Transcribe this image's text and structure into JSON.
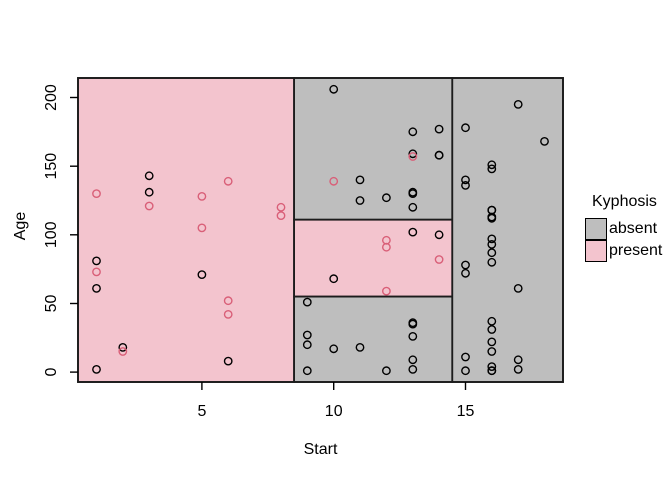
{
  "figure": {
    "background": "#ffffff"
  },
  "chart_data": {
    "type": "scatter",
    "title": "",
    "xlabel": "Start",
    "ylabel": "Age",
    "xlim": [
      0.3,
      18.7
    ],
    "ylim": [
      -7.2,
      214.2
    ],
    "x_ticks": [
      5,
      10,
      15
    ],
    "y_ticks": [
      0,
      50,
      100,
      150,
      200
    ],
    "grid": false,
    "marker": "open-circle",
    "legend": {
      "title": "Kyphosis",
      "position": "right",
      "items": [
        {
          "label": "absent",
          "color": "#bebebe"
        },
        {
          "label": "present",
          "color": "#f3c4ce"
        }
      ]
    },
    "colors": {
      "absent_fill": "#bebebe",
      "present_fill": "#f3c4ce",
      "absent_point": "#000000",
      "present_point": "#d95f78",
      "line": "#1c1c1c"
    },
    "boundaries": {
      "start": [
        8.5,
        14.5
      ],
      "age": [
        55,
        111
      ]
    },
    "regions": [
      {
        "class": "present",
        "x0": 0.3,
        "x1": 8.5,
        "y0": -7.2,
        "y1": 214.2
      },
      {
        "class": "absent",
        "x0": 8.5,
        "x1": 14.5,
        "y0": 111,
        "y1": 214.2
      },
      {
        "class": "present",
        "x0": 8.5,
        "x1": 14.5,
        "y0": 55,
        "y1": 111
      },
      {
        "class": "absent",
        "x0": 8.5,
        "x1": 14.5,
        "y0": -7.2,
        "y1": 55
      },
      {
        "class": "absent",
        "x0": 14.5,
        "x1": 18.7,
        "y0": -7.2,
        "y1": 214.2
      }
    ],
    "series": [
      {
        "name": "absent",
        "points": [
          [
            5,
            71
          ],
          [
            14,
            158
          ],
          [
            1,
            2
          ],
          [
            15,
            1
          ],
          [
            16,
            1
          ],
          [
            17,
            61
          ],
          [
            16,
            37
          ],
          [
            16,
            113
          ],
          [
            16,
            148
          ],
          [
            2,
            18
          ],
          [
            12,
            1
          ],
          [
            18,
            168
          ],
          [
            16,
            1
          ],
          [
            15,
            78
          ],
          [
            13,
            175
          ],
          [
            16,
            80
          ],
          [
            9,
            27
          ],
          [
            16,
            22
          ],
          [
            3,
            131
          ],
          [
            13,
            9
          ],
          [
            6,
            8
          ],
          [
            14,
            100
          ],
          [
            16,
            4
          ],
          [
            16,
            151
          ],
          [
            16,
            31
          ],
          [
            11,
            125
          ],
          [
            13,
            130
          ],
          [
            16,
            112
          ],
          [
            11,
            140
          ],
          [
            16,
            93
          ],
          [
            9,
            1
          ],
          [
            9,
            20
          ],
          [
            13,
            35
          ],
          [
            3,
            143
          ],
          [
            1,
            61
          ],
          [
            16,
            97
          ],
          [
            15,
            136
          ],
          [
            13,
            131
          ],
          [
            14,
            177
          ],
          [
            10,
            68
          ],
          [
            17,
            9
          ],
          [
            17,
            2
          ],
          [
            15,
            140
          ],
          [
            15,
            72
          ],
          [
            13,
            2
          ],
          [
            9,
            51
          ],
          [
            13,
            102
          ],
          [
            1,
            81
          ],
          [
            16,
            118
          ],
          [
            16,
            118
          ],
          [
            10,
            17
          ],
          [
            17,
            195
          ],
          [
            13,
            159
          ],
          [
            11,
            18
          ],
          [
            16,
            15
          ],
          [
            14,
            158
          ],
          [
            12,
            127
          ],
          [
            16,
            87
          ],
          [
            10,
            206
          ],
          [
            15,
            11
          ],
          [
            15,
            178
          ],
          [
            13,
            26
          ],
          [
            13,
            120
          ],
          [
            13,
            36
          ]
        ]
      },
      {
        "name": "present",
        "points": [
          [
            5,
            128
          ],
          [
            12,
            59
          ],
          [
            14,
            82
          ],
          [
            5,
            105
          ],
          [
            12,
            96
          ],
          [
            2,
            15
          ],
          [
            6,
            52
          ],
          [
            12,
            91
          ],
          [
            1,
            73
          ],
          [
            10,
            139
          ],
          [
            3,
            121
          ],
          [
            6,
            139
          ],
          [
            1,
            130
          ],
          [
            8,
            120
          ],
          [
            13,
            157
          ],
          [
            6,
            42
          ],
          [
            8,
            114
          ]
        ]
      }
    ]
  }
}
